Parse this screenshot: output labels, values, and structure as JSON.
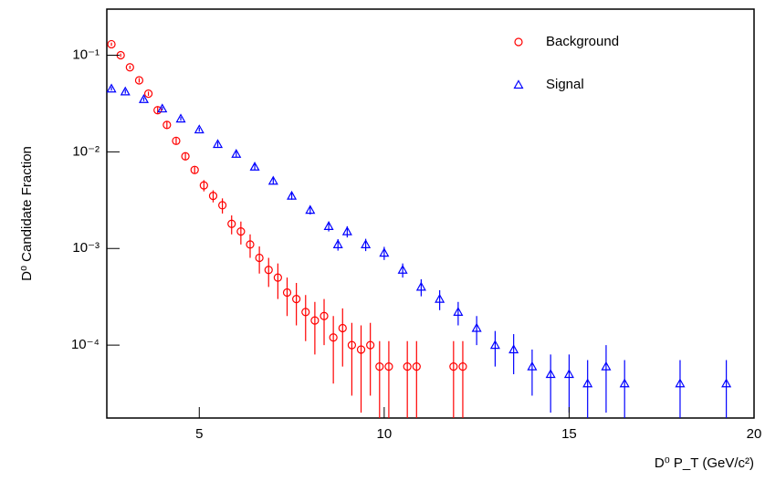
{
  "chart_data": {
    "type": "scatter",
    "x_label": "D⁰ P_T (GeV/c²)",
    "y_label": "D⁰ Candidate Fraction",
    "log_y": true,
    "legend": "upper right",
    "xlim": [
      2.5,
      20
    ],
    "xticks": [
      5,
      10,
      15,
      20
    ],
    "ylim": [
      1.76e-05,
      0.3
    ],
    "yticks": [
      {
        "value": 0.0001,
        "label": "10⁻⁴"
      },
      {
        "value": 0.001,
        "label": "10⁻³"
      },
      {
        "value": 0.01,
        "label": "10⁻²"
      },
      {
        "value": 0.1,
        "label": "10⁻¹"
      }
    ],
    "series": [
      {
        "name": "Background",
        "color": "#ff0000",
        "marker": "circle",
        "x": [
          2.625,
          2.875,
          3.125,
          3.375,
          3.625,
          3.875,
          4.125,
          4.375,
          4.625,
          4.875,
          5.125,
          5.375,
          5.625,
          5.875,
          6.125,
          6.375,
          6.625,
          6.875,
          7.125,
          7.375,
          7.625,
          7.875,
          8.125,
          8.375,
          8.625,
          8.875,
          9.125,
          9.375,
          9.625,
          9.875,
          10.125,
          10.625,
          10.875,
          11.875,
          12.125
        ],
        "values": [
          0.13,
          0.1,
          0.075,
          0.055,
          0.04,
          0.027,
          0.019,
          0.013,
          0.009,
          0.0065,
          0.0045,
          0.0035,
          0.0028,
          0.0018,
          0.0015,
          0.0011,
          0.0008,
          0.0006,
          0.0005,
          0.00035,
          0.0003,
          0.00022,
          0.00018,
          0.0002,
          0.00012,
          0.00015,
          0.0001,
          9e-05,
          0.0001,
          6e-05,
          6e-05,
          6e-05,
          6e-05,
          6e-05,
          6e-05
        ],
        "errors": [
          0.005,
          0.004,
          0.003,
          0.003,
          0.002,
          0.002,
          0.0015,
          0.001,
          0.0008,
          0.0006,
          0.0006,
          0.0005,
          0.0005,
          0.0004,
          0.0004,
          0.0003,
          0.00025,
          0.0002,
          0.0002,
          0.00015,
          0.00014,
          0.00011,
          0.0001,
          0.0001,
          8e-05,
          9e-05,
          7e-05,
          7e-05,
          7e-05,
          5e-05,
          5e-05,
          5e-05,
          5e-05,
          5e-05,
          5e-05
        ]
      },
      {
        "name": "Signal",
        "color": "#0000ff",
        "marker": "triangle",
        "x": [
          2.625,
          3,
          3.5,
          4,
          4.5,
          5,
          5.5,
          6,
          6.5,
          7,
          7.5,
          8,
          8.5,
          8.75,
          9,
          9.5,
          10,
          10.5,
          11,
          11.5,
          12,
          12.5,
          13,
          13.5,
          14,
          14.5,
          15,
          15.5,
          16,
          16.5,
          18,
          19.25
        ],
        "values": [
          0.045,
          0.042,
          0.035,
          0.028,
          0.022,
          0.017,
          0.012,
          0.0095,
          0.007,
          0.005,
          0.0035,
          0.0025,
          0.0017,
          0.0011,
          0.0015,
          0.0011,
          0.0009,
          0.0006,
          0.0004,
          0.0003,
          0.00022,
          0.00015,
          0.0001,
          9e-05,
          6e-05,
          5e-05,
          5e-05,
          4e-05,
          6e-05,
          4e-05,
          4e-05,
          4e-05
        ],
        "errors": [
          0.002,
          0.002,
          0.0015,
          0.0012,
          0.001,
          0.0008,
          0.0007,
          0.0006,
          0.0005,
          0.0004,
          0.0003,
          0.00025,
          0.0002,
          0.00015,
          0.0002,
          0.00016,
          0.00014,
          0.0001,
          8e-05,
          7e-05,
          6e-05,
          5e-05,
          4e-05,
          4e-05,
          3e-05,
          3e-05,
          3e-05,
          3e-05,
          4e-05,
          3e-05,
          3e-05,
          3e-05
        ]
      }
    ]
  }
}
